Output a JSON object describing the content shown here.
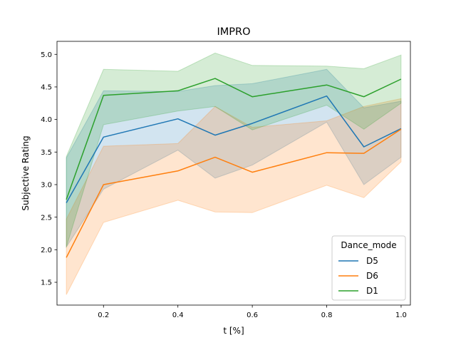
{
  "chart_data": {
    "type": "line",
    "title": "IMPRO",
    "xlabel": "t [%]",
    "ylabel": "Subjective Rating",
    "xlim": [
      0.075,
      1.025
    ],
    "ylim": [
      1.15,
      5.2
    ],
    "x_ticks": [
      0.2,
      0.4,
      0.6,
      0.8,
      1.0
    ],
    "x_tick_labels": [
      "0.2",
      "0.4",
      "0.6",
      "0.8",
      "1.0"
    ],
    "y_ticks": [
      1.5,
      2.0,
      2.5,
      3.0,
      3.5,
      4.0,
      4.5,
      5.0
    ],
    "y_tick_labels": [
      "1.5",
      "2.0",
      "2.5",
      "3.0",
      "3.5",
      "4.0",
      "4.5",
      "5.0"
    ],
    "grid": false,
    "legend": {
      "title": "Dance_mode",
      "placement": "lower-right"
    },
    "x": [
      0.1,
      0.2,
      0.4,
      0.5,
      0.6,
      0.8,
      0.9,
      1.0
    ],
    "series": [
      {
        "name": "D5",
        "color": "#1f77b4",
        "values": [
          2.72,
          3.73,
          4.01,
          3.76,
          3.94,
          4.36,
          3.58,
          3.86
        ],
        "ci_lower": [
          2.04,
          2.93,
          3.53,
          3.1,
          3.3,
          3.96,
          3.0,
          3.42
        ],
        "ci_upper": [
          3.41,
          4.44,
          4.43,
          4.52,
          4.55,
          4.77,
          4.18,
          4.28
        ]
      },
      {
        "name": "D6",
        "color": "#ff7f0e",
        "values": [
          1.88,
          3.0,
          3.21,
          3.42,
          3.19,
          3.49,
          3.48,
          3.85
        ],
        "ci_lower": [
          1.31,
          2.42,
          2.76,
          2.58,
          2.57,
          2.99,
          2.8,
          3.35
        ],
        "ci_upper": [
          2.47,
          3.59,
          3.63,
          4.2,
          3.88,
          3.98,
          4.2,
          4.32
        ]
      },
      {
        "name": "D1",
        "color": "#2ca02c",
        "values": [
          2.77,
          4.37,
          4.44,
          4.63,
          4.35,
          4.53,
          4.35,
          4.62
        ],
        "ci_lower": [
          2.04,
          3.92,
          4.13,
          4.2,
          3.84,
          4.22,
          3.85,
          4.25
        ],
        "ci_upper": [
          3.43,
          4.77,
          4.74,
          5.02,
          4.83,
          4.82,
          4.78,
          4.99
        ]
      }
    ]
  }
}
